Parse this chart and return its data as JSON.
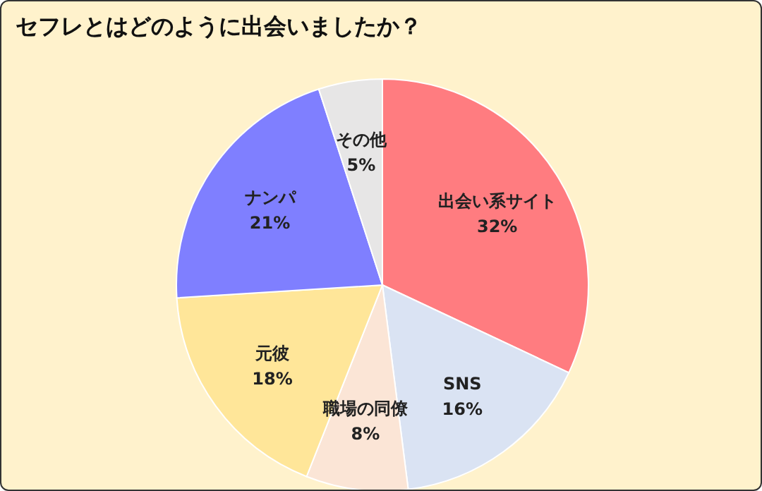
{
  "chart_data": {
    "type": "pie",
    "title": "セフレとはどのように出会いましたか？",
    "categories": [
      "出会い系サイト",
      "SNS",
      "職場の同僚",
      "元彼",
      "ナンパ",
      "その他"
    ],
    "values": [
      32,
      16,
      8,
      18,
      21,
      5
    ],
    "value_labels": [
      "32%",
      "16%",
      "8%",
      "18%",
      "21%",
      "5%"
    ],
    "colors": [
      "#ff7c80",
      "#dae3f3",
      "#fbe5d6",
      "#ffe699",
      "#7f7fff",
      "#e7e6e6"
    ],
    "legend": false
  }
}
